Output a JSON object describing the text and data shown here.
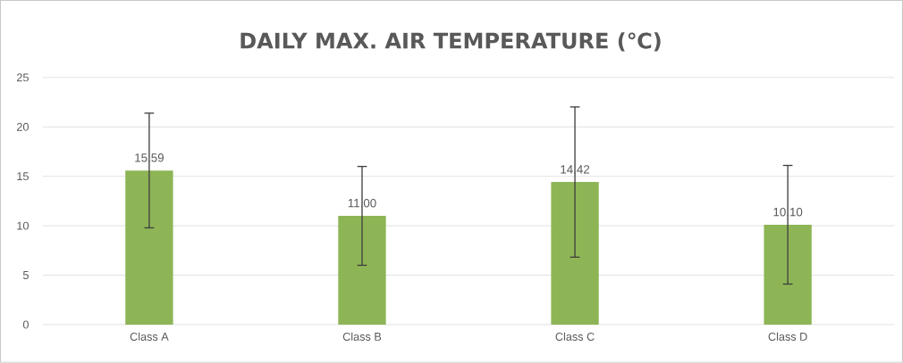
{
  "chart_data": {
    "type": "bar",
    "title": "DAILY MAX. AIR TEMPERATURE (℃)",
    "categories": [
      "Class A",
      "Class B",
      "Class C",
      "Class D"
    ],
    "values": [
      15.59,
      11.0,
      14.42,
      10.1
    ],
    "errors": [
      5.8,
      5.0,
      7.6,
      6.0
    ],
    "color": "#8db556",
    "ylim": [
      0,
      25
    ],
    "yticks": [
      0,
      5,
      10,
      15,
      20,
      25
    ],
    "value_labels": [
      "15.59",
      "11.00",
      "14.42",
      "10.10"
    ],
    "grid": "y"
  }
}
